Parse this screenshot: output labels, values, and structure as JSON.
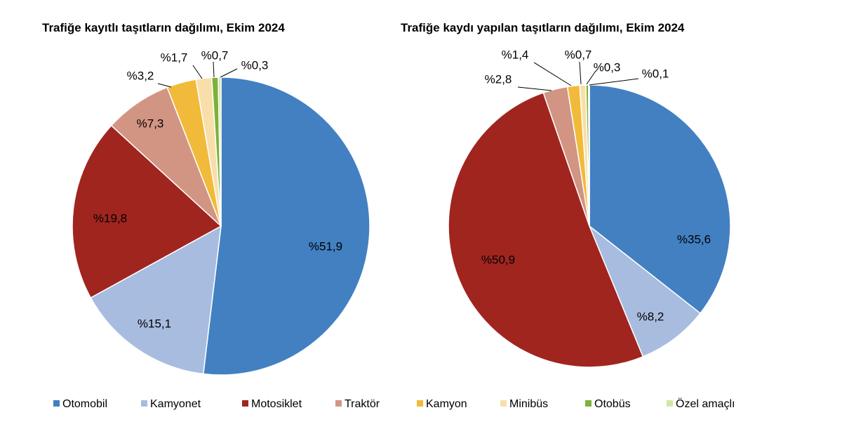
{
  "legend": [
    {
      "label": "Otomobil",
      "color": "#4280C2"
    },
    {
      "label": "Kamyonet",
      "color": "#A8BCE0"
    },
    {
      "label": "Motosiklet",
      "color": "#A0251F"
    },
    {
      "label": "Traktör",
      "color": "#D29583"
    },
    {
      "label": "Kamyon",
      "color": "#F2BA3A"
    },
    {
      "label": "Minibüs",
      "color": "#F8DFAA"
    },
    {
      "label": "Otobüs",
      "color": "#7CB23A"
    },
    {
      "label": "Özel amaçlı",
      "color": "#D3E6A5"
    }
  ],
  "chart_data": [
    {
      "type": "pie",
      "title": "Trafiğe kayıtlı taşıtların dağılımı, Ekim 2024",
      "categories": [
        "Otomobil",
        "Kamyonet",
        "Motosiklet",
        "Traktör",
        "Kamyon",
        "Minibüs",
        "Otobüs",
        "Özel amaçlı"
      ],
      "values": [
        51.9,
        15.1,
        19.8,
        7.3,
        3.2,
        1.7,
        0.7,
        0.3
      ],
      "labels": [
        "%51,9",
        "%15,1",
        "%19,8",
        "%7,3",
        "%3,2",
        "%1,7",
        "%0,7",
        "%0,3"
      ]
    },
    {
      "type": "pie",
      "title": "Trafiğe kaydı yapılan taşıtların dağılımı, Ekim 2024",
      "categories": [
        "Otomobil",
        "Kamyonet",
        "Motosiklet",
        "Traktör",
        "Kamyon",
        "Minibüs",
        "Otobüs",
        "Özel amaçlı"
      ],
      "values": [
        35.6,
        8.2,
        50.9,
        2.8,
        1.4,
        0.7,
        0.3,
        0.1
      ],
      "labels": [
        "%35,6",
        "%8,2",
        "%50,9",
        "%2,8",
        "%1,4",
        "%0,7",
        "%0,3",
        "%0,1"
      ]
    }
  ]
}
